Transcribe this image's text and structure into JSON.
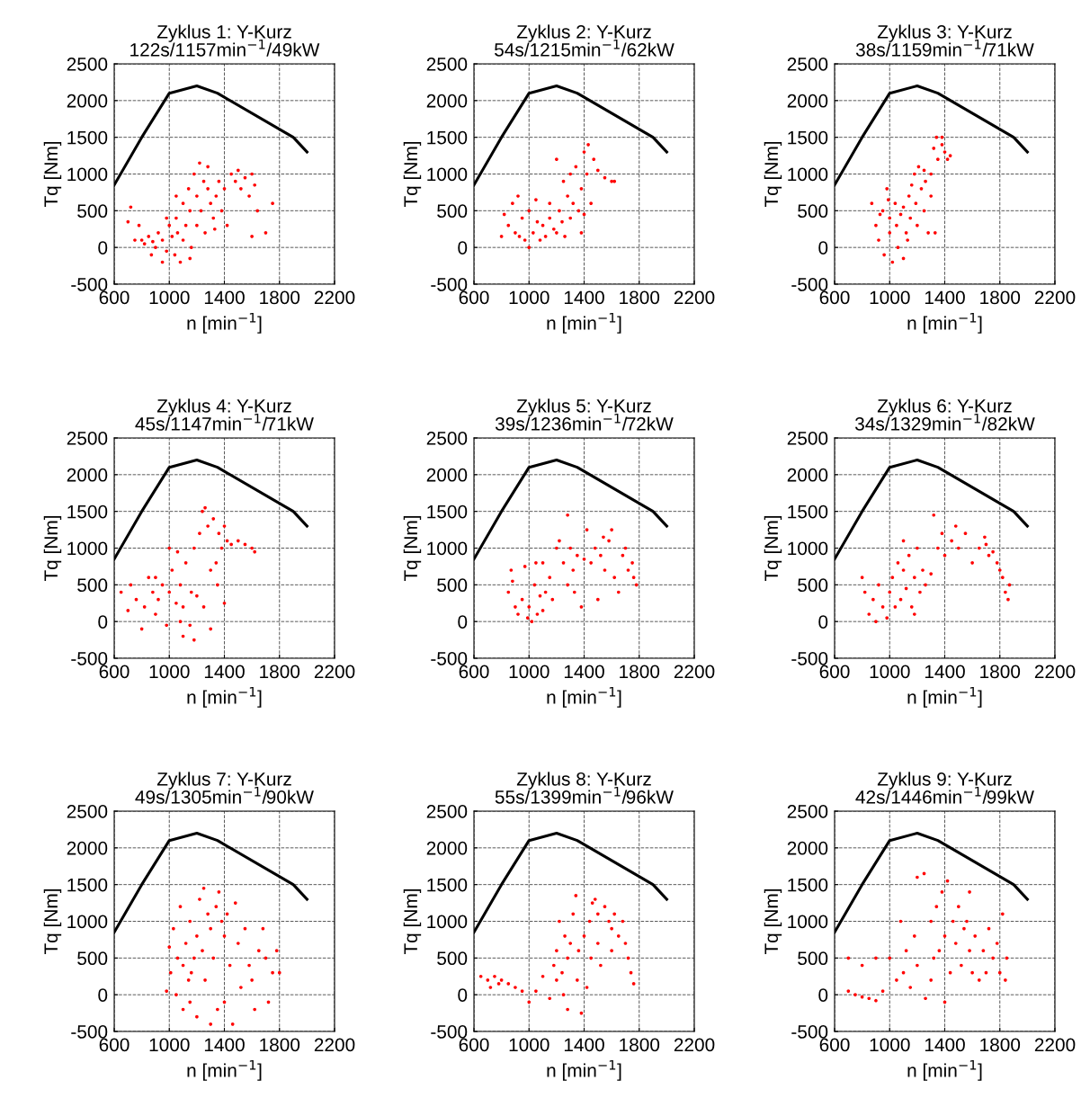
{
  "chart_data": [
    {
      "type": "scatter",
      "title": "Zyklus 1: Y-Kurz",
      "subtitle": "122s/1157min$^{−1}$/49kW",
      "xlabel": "n [min$^{−1}$]",
      "ylabel": "Tq [Nm]",
      "xlim": [
        600,
        2200
      ],
      "xticks": [
        600,
        1000,
        1400,
        1800,
        2200
      ],
      "ylim": [
        -500,
        2500
      ],
      "yticks": [
        -500,
        0,
        500,
        1000,
        1500,
        2000,
        2500
      ],
      "grid": true,
      "series": [
        {
          "type": "line",
          "color": "#000000",
          "marker": "none",
          "line_style": "solid",
          "x": [
            600,
            800,
            1000,
            1200,
            1350,
            1900,
            2000
          ],
          "values": [
            850,
            1500,
            2100,
            2200,
            2100,
            1500,
            1300
          ]
        },
        {
          "color": "#ff0000",
          "marker": "circle",
          "x": [
            700,
            720,
            750,
            780,
            800,
            820,
            850,
            880,
            900,
            920,
            950,
            980,
            1000,
            1020,
            1040,
            1050,
            1060,
            1080,
            1100,
            1100,
            1120,
            1140,
            1150,
            1160,
            1180,
            1200,
            1200,
            1220,
            1230,
            1250,
            1260,
            1280,
            1300,
            1320,
            1340,
            1360,
            1380,
            1400,
            1420,
            1450,
            1480,
            1500,
            1520,
            1550,
            1580,
            1600,
            1620,
            1640,
            1600,
            1700,
            1750,
            1280,
            1150,
            950,
            1330,
            1050,
            980,
            870
          ],
          "values": [
            350,
            550,
            100,
            300,
            100,
            50,
            150,
            80,
            0,
            200,
            100,
            -50,
            300,
            150,
            -100,
            400,
            200,
            -200,
            600,
            100,
            300,
            800,
            500,
            0,
            1000,
            700,
            300,
            1150,
            500,
            900,
            200,
            800,
            600,
            400,
            700,
            900,
            500,
            800,
            300,
            1000,
            900,
            1050,
            800,
            950,
            700,
            1000,
            850,
            500,
            150,
            200,
            600,
            1100,
            -150,
            -200,
            250,
            700,
            400,
            -100
          ]
        }
      ]
    },
    {
      "type": "scatter",
      "title": "Zyklus 2: Y-Kurz",
      "subtitle": "54s/1215min$^{−1}$/62kW",
      "xlabel": "n [min$^{−1}$]",
      "ylabel": "Tq [Nm]",
      "xlim": [
        600,
        2200
      ],
      "xticks": [
        600,
        1000,
        1400,
        1800,
        2200
      ],
      "ylim": [
        -500,
        2500
      ],
      "yticks": [
        -500,
        0,
        500,
        1000,
        1500,
        2000,
        2500
      ],
      "grid": true,
      "series": [
        {
          "type": "line",
          "color": "#000000",
          "marker": "none",
          "line_style": "solid",
          "x": [
            600,
            800,
            1000,
            1200,
            1350,
            1900,
            2000
          ],
          "values": [
            850,
            1500,
            2100,
            2200,
            2100,
            1500,
            1300
          ]
        },
        {
          "color": "#ff0000",
          "marker": "circle",
          "x": [
            800,
            820,
            850,
            880,
            900,
            920,
            950,
            970,
            1000,
            1000,
            1030,
            1050,
            1080,
            1100,
            1120,
            1150,
            1180,
            1200,
            1220,
            1240,
            1260,
            1280,
            1300,
            1300,
            1320,
            1340,
            1360,
            1380,
            1400,
            1400,
            1420,
            1430,
            1450,
            1470,
            1500,
            1550,
            1600,
            1620,
            1250,
            1150,
            1060,
            930,
            1200,
            1380
          ],
          "values": [
            150,
            450,
            300,
            600,
            200,
            700,
            400,
            100,
            0,
            500,
            200,
            650,
            100,
            300,
            150,
            400,
            250,
            200,
            500,
            350,
            150,
            700,
            400,
            1000,
            600,
            1100,
            500,
            800,
            1300,
            450,
            1000,
            1400,
            600,
            1200,
            1050,
            950,
            900,
            900,
            900,
            600,
            350,
            150,
            1200,
            200
          ]
        }
      ]
    },
    {
      "type": "scatter",
      "title": "Zyklus 3: Y-Kurz",
      "subtitle": "38s/1159min$^{−1}$/71kW",
      "xlabel": "n [min$^{−1}$]",
      "ylabel": "Tq [Nm]",
      "xlim": [
        600,
        2200
      ],
      "xticks": [
        600,
        1000,
        1400,
        1800,
        2200
      ],
      "ylim": [
        -500,
        2500
      ],
      "yticks": [
        -500,
        0,
        500,
        1000,
        1500,
        2000,
        2500
      ],
      "grid": true,
      "series": [
        {
          "type": "line",
          "color": "#000000",
          "marker": "none",
          "line_style": "solid",
          "x": [
            600,
            800,
            1000,
            1200,
            1350,
            1900,
            2000
          ],
          "values": [
            850,
            1500,
            2100,
            2200,
            2100,
            1500,
            1300
          ]
        },
        {
          "color": "#ff0000",
          "marker": "circle",
          "x": [
            870,
            900,
            920,
            950,
            960,
            980,
            1000,
            1000,
            1020,
            1040,
            1050,
            1060,
            1080,
            1100,
            1100,
            1120,
            1140,
            1150,
            1160,
            1180,
            1190,
            1200,
            1210,
            1230,
            1250,
            1260,
            1280,
            1300,
            1300,
            1320,
            1340,
            1350,
            1380,
            1400,
            1420,
            1440,
            1380,
            1330,
            1250,
            930,
            990,
            1130
          ],
          "values": [
            600,
            300,
            100,
            500,
            -100,
            800,
            200,
            400,
            -200,
            600,
            300,
            0,
            450,
            -150,
            550,
            200,
            700,
            400,
            850,
            1000,
            600,
            300,
            1100,
            800,
            500,
            900,
            200,
            700,
            1000,
            1350,
            1500,
            1200,
            1400,
            1300,
            1200,
            1250,
            1500,
            200,
            1050,
            450,
            650,
            100
          ]
        }
      ]
    },
    {
      "type": "scatter",
      "title": "Zyklus 4: Y-Kurz",
      "subtitle": "45s/1147min$^{−1}$/71kW",
      "xlabel": "n [min$^{−1}$]",
      "ylabel": "Tq [Nm]",
      "xlim": [
        600,
        2200
      ],
      "xticks": [
        600,
        1000,
        1400,
        1800,
        2200
      ],
      "ylim": [
        -500,
        2500
      ],
      "yticks": [
        -500,
        0,
        500,
        1000,
        1500,
        2000,
        2500
      ],
      "grid": true,
      "series": [
        {
          "type": "line",
          "color": "#000000",
          "marker": "none",
          "line_style": "solid",
          "x": [
            600,
            800,
            1000,
            1200,
            1350,
            1900,
            2000
          ],
          "values": [
            850,
            1500,
            2100,
            2200,
            2100,
            1500,
            1300
          ]
        },
        {
          "color": "#ff0000",
          "marker": "circle",
          "x": [
            650,
            700,
            720,
            760,
            800,
            820,
            850,
            880,
            900,
            920,
            950,
            980,
            1000,
            1020,
            1050,
            1060,
            1080,
            1100,
            1100,
            1120,
            1150,
            1160,
            1180,
            1180,
            1200,
            1220,
            1240,
            1260,
            1280,
            1300,
            1320,
            1340,
            1360,
            1380,
            1400,
            1420,
            1450,
            1500,
            1550,
            1600,
            1620,
            1400,
            1350,
            1300,
            1000,
            900,
            1080,
            1250
          ],
          "values": [
            400,
            150,
            500,
            300,
            -100,
            200,
            600,
            400,
            100,
            300,
            500,
            -50,
            400,
            700,
            250,
            950,
            500,
            200,
            -200,
            800,
            -50,
            400,
            1000,
            -250,
            350,
            1200,
            1500,
            1550,
            1300,
            700,
            1400,
            800,
            1200,
            1000,
            1300,
            1100,
            1050,
            1100,
            1050,
            1000,
            950,
            250,
            500,
            -100,
            1000,
            600,
            0,
            200
          ]
        }
      ]
    },
    {
      "type": "scatter",
      "title": "Zyklus 5: Y-Kurz",
      "subtitle": "39s/1236min$^{−1}$/72kW",
      "xlabel": "n [min$^{−1}$]",
      "ylabel": "Tq [Nm]",
      "xlim": [
        600,
        2200
      ],
      "xticks": [
        600,
        1000,
        1400,
        1800,
        2200
      ],
      "ylim": [
        -500,
        2500
      ],
      "yticks": [
        -500,
        0,
        500,
        1000,
        1500,
        2000,
        2500
      ],
      "grid": true,
      "series": [
        {
          "type": "line",
          "color": "#000000",
          "marker": "none",
          "line_style": "solid",
          "x": [
            600,
            800,
            1000,
            1200,
            1350,
            1900,
            2000
          ],
          "values": [
            850,
            1500,
            2100,
            2200,
            2100,
            1500,
            1300
          ]
        },
        {
          "color": "#ff0000",
          "marker": "circle",
          "x": [
            850,
            880,
            900,
            920,
            950,
            970,
            990,
            1000,
            1020,
            1040,
            1060,
            1080,
            1100,
            1100,
            1120,
            1150,
            1170,
            1200,
            1220,
            1250,
            1280,
            1280,
            1300,
            1320,
            1350,
            1380,
            1400,
            1420,
            1450,
            1480,
            1500,
            1520,
            1550,
            1580,
            1600,
            1620,
            1650,
            1680,
            1700,
            1720,
            1750,
            1780,
            1760,
            1540,
            1330,
            1050,
            870
          ],
          "values": [
            400,
            550,
            200,
            100,
            300,
            750,
            50,
            200,
            0,
            500,
            100,
            350,
            800,
            150,
            400,
            600,
            300,
            1000,
            1100,
            800,
            500,
            1450,
            1000,
            700,
            900,
            200,
            850,
            1250,
            800,
            1000,
            300,
            900,
            700,
            1100,
            1250,
            600,
            400,
            900,
            1000,
            700,
            800,
            500,
            600,
            1150,
            400,
            800,
            700
          ]
        }
      ]
    },
    {
      "type": "scatter",
      "title": "Zyklus 6: Y-Kurz",
      "subtitle": "34s/1329min$^{−1}$/82kW",
      "xlabel": "n [min$^{−1}$]",
      "ylabel": "Tq [Nm]",
      "xlim": [
        600,
        2200
      ],
      "xticks": [
        600,
        1000,
        1400,
        1800,
        2200
      ],
      "ylim": [
        -500,
        2500
      ],
      "yticks": [
        -500,
        0,
        500,
        1000,
        1500,
        2000,
        2500
      ],
      "grid": true,
      "series": [
        {
          "type": "line",
          "color": "#000000",
          "marker": "none",
          "line_style": "solid",
          "x": [
            600,
            800,
            1000,
            1200,
            1350,
            1900,
            2000
          ],
          "values": [
            850,
            1500,
            2100,
            2200,
            2100,
            1500,
            1300
          ]
        },
        {
          "color": "#ff0000",
          "marker": "circle",
          "x": [
            800,
            820,
            850,
            880,
            900,
            920,
            950,
            980,
            1000,
            1020,
            1040,
            1060,
            1080,
            1100,
            1100,
            1120,
            1140,
            1160,
            1180,
            1200,
            1220,
            1240,
            1260,
            1300,
            1320,
            1350,
            1380,
            1400,
            1450,
            1500,
            1550,
            1600,
            1650,
            1700,
            1720,
            1750,
            1780,
            1800,
            1820,
            1840,
            1860,
            1870,
            1690,
            1480,
            1180
          ],
          "values": [
            600,
            400,
            100,
            300,
            0,
            500,
            200,
            50,
            400,
            600,
            200,
            800,
            300,
            700,
            1100,
            450,
            900,
            200,
            600,
            1000,
            400,
            700,
            500,
            650,
            1450,
            1000,
            1200,
            900,
            1100,
            1000,
            1200,
            800,
            1000,
            1050,
            900,
            950,
            800,
            700,
            600,
            400,
            300,
            500,
            1150,
            1300,
            100
          ]
        }
      ]
    },
    {
      "type": "scatter",
      "title": "Zyklus 7: Y-Kurz",
      "subtitle": "49s/1305min$^{−1}$/90kW",
      "xlabel": "n [min$^{−1}$]",
      "ylabel": "Tq [Nm]",
      "xlim": [
        600,
        2200
      ],
      "xticks": [
        600,
        1000,
        1400,
        1800,
        2200
      ],
      "ylim": [
        -500,
        2500
      ],
      "yticks": [
        -500,
        0,
        500,
        1000,
        1500,
        2000,
        2500
      ],
      "grid": true,
      "series": [
        {
          "type": "line",
          "color": "#000000",
          "marker": "none",
          "line_style": "solid",
          "x": [
            600,
            800,
            1000,
            1200,
            1350,
            1900,
            2000
          ],
          "values": [
            850,
            1500,
            2100,
            2200,
            2100,
            1500,
            1300
          ]
        },
        {
          "color": "#ff0000",
          "marker": "circle",
          "x": [
            980,
            1000,
            1010,
            1030,
            1050,
            1060,
            1080,
            1100,
            1100,
            1120,
            1140,
            1150,
            1160,
            1180,
            1200,
            1200,
            1220,
            1240,
            1260,
            1280,
            1300,
            1300,
            1320,
            1340,
            1360,
            1380,
            1400,
            1400,
            1420,
            1440,
            1460,
            1480,
            1500,
            1520,
            1550,
            1580,
            1600,
            1620,
            1650,
            1680,
            1700,
            1720,
            1750,
            1780,
            1800,
            1250,
            1350,
            1150
          ],
          "values": [
            50,
            650,
            300,
            900,
            0,
            500,
            1200,
            -200,
            400,
            700,
            200,
            1000,
            300,
            500,
            -300,
            800,
            1300,
            600,
            200,
            1100,
            -400,
            900,
            500,
            1200,
            1400,
            1000,
            800,
            -100,
            1100,
            400,
            -400,
            1250,
            700,
            100,
            900,
            400,
            200,
            -200,
            600,
            900,
            500,
            -100,
            300,
            600,
            300,
            1450,
            -200,
            -100
          ]
        }
      ]
    },
    {
      "type": "scatter",
      "title": "Zyklus 8: Y-Kurz",
      "subtitle": "55s/1399min$^{−1}$/96kW",
      "xlabel": "n [min$^{−1}$]",
      "ylabel": "Tq [Nm]",
      "xlim": [
        600,
        2200
      ],
      "xticks": [
        600,
        1000,
        1400,
        1800,
        2200
      ],
      "ylim": [
        -500,
        2500
      ],
      "yticks": [
        -500,
        0,
        500,
        1000,
        1500,
        2000,
        2500
      ],
      "grid": true,
      "series": [
        {
          "type": "line",
          "color": "#000000",
          "marker": "none",
          "line_style": "solid",
          "x": [
            600,
            800,
            1000,
            1200,
            1350,
            1900,
            2000
          ],
          "values": [
            850,
            1500,
            2100,
            2200,
            2100,
            1500,
            1300
          ]
        },
        {
          "color": "#ff0000",
          "marker": "circle",
          "x": [
            650,
            700,
            720,
            750,
            780,
            800,
            850,
            900,
            950,
            1000,
            1050,
            1100,
            1150,
            1180,
            1200,
            1200,
            1220,
            1240,
            1260,
            1280,
            1280,
            1300,
            1320,
            1340,
            1350,
            1360,
            1380,
            1400,
            1420,
            1440,
            1460,
            1480,
            1500,
            1500,
            1520,
            1550,
            1580,
            1600,
            1620,
            1650,
            1680,
            1700,
            1720,
            1740,
            1760,
            1450,
            1250,
            1600
          ],
          "values": [
            250,
            200,
            100,
            250,
            150,
            200,
            150,
            100,
            50,
            -100,
            50,
            250,
            -50,
            400,
            600,
            200,
            1000,
            300,
            800,
            -200,
            500,
            700,
            1100,
            1350,
            200,
            600,
            -250,
            800,
            100,
            1000,
            1250,
            1300,
            700,
            1100,
            400,
            1200,
            1000,
            900,
            1100,
            800,
            1000,
            700,
            500,
            300,
            150,
            500,
            0,
            600
          ]
        }
      ]
    },
    {
      "type": "scatter",
      "title": "Zyklus 9: Y-Kurz",
      "subtitle": "42s/1446min$^{−1}$/99kW",
      "xlabel": "n [min$^{−1}$]",
      "ylabel": "Tq [Nm]",
      "xlim": [
        600,
        2200
      ],
      "xticks": [
        600,
        1000,
        1400,
        1800,
        2200
      ],
      "ylim": [
        -500,
        2500
      ],
      "yticks": [
        -500,
        0,
        500,
        1000,
        1500,
        2000,
        2500
      ],
      "grid": true,
      "series": [
        {
          "type": "line",
          "color": "#000000",
          "marker": "none",
          "line_style": "solid",
          "x": [
            600,
            800,
            1000,
            1200,
            1350,
            1900,
            2000
          ],
          "values": [
            850,
            1500,
            2100,
            2200,
            2100,
            1500,
            1300
          ]
        },
        {
          "color": "#ff0000",
          "marker": "circle",
          "x": [
            700,
            750,
            800,
            850,
            900,
            950,
            700,
            800,
            900,
            1000,
            1050,
            1100,
            1120,
            1150,
            1180,
            1200,
            1200,
            1250,
            1300,
            1300,
            1320,
            1340,
            1360,
            1380,
            1400,
            1400,
            1420,
            1440,
            1460,
            1480,
            1500,
            1520,
            1540,
            1560,
            1580,
            1600,
            1620,
            1650,
            1680,
            1700,
            1720,
            1750,
            1780,
            1800,
            1820,
            1840,
            1850,
            1260,
            1080,
            1580
          ],
          "values": [
            50,
            0,
            -30,
            -50,
            -80,
            50,
            500,
            400,
            500,
            500,
            200,
            300,
            600,
            100,
            800,
            400,
            1600,
            1650,
            1000,
            200,
            500,
            1200,
            600,
            1400,
            800,
            -100,
            1550,
            300,
            1000,
            700,
            1200,
            400,
            900,
            1000,
            600,
            300,
            800,
            200,
            600,
            300,
            900,
            500,
            700,
            300,
            1100,
            200,
            500,
            -50,
            1000,
            1400
          ]
        }
      ]
    }
  ]
}
